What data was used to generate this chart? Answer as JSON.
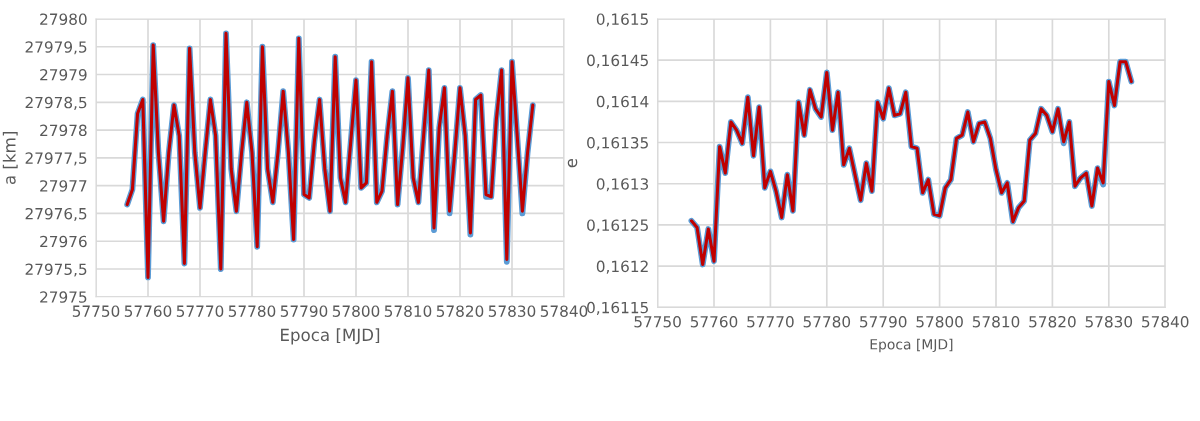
{
  "chart_data": [
    {
      "type": "line",
      "xlabel": "Epoca [MJD]",
      "ylabel": "a [km]",
      "x": [
        57756,
        57757,
        57758,
        57759,
        57760,
        57761,
        57762,
        57763,
        57764,
        57765,
        57766,
        57767,
        57768,
        57769,
        57770,
        57771,
        57772,
        57773,
        57774,
        57775,
        57776,
        57777,
        57778,
        57779,
        57780,
        57781,
        57782,
        57783,
        57784,
        57785,
        57786,
        57787,
        57788,
        57789,
        57790,
        57791,
        57792,
        57793,
        57794,
        57795,
        57796,
        57797,
        57798,
        57799,
        57800,
        57801,
        57802,
        57803,
        57804,
        57805,
        57806,
        57807,
        57808,
        57809,
        57810,
        57811,
        57812,
        57813,
        57814,
        57815,
        57816,
        57817,
        57818,
        57819,
        57820,
        57821,
        57822,
        57823,
        57824,
        57825,
        57826,
        57827,
        57828,
        57829,
        57830,
        57831,
        57832,
        57833,
        57834
      ],
      "series": [
        {
          "color": "#5b9bd5",
          "values": [
            27976.66,
            27976.93,
            27978.3,
            27978.55,
            27975.35,
            27979.53,
            27977.6,
            27976.36,
            27977.6,
            27978.45,
            27977.9,
            27975.6,
            27979.47,
            27977.6,
            27976.6,
            27977.6,
            27978.55,
            27977.9,
            27975.5,
            27979.74,
            27977.3,
            27976.54,
            27977.6,
            27978.5,
            27977.6,
            27975.9,
            27979.5,
            27977.3,
            27976.7,
            27977.6,
            27978.7,
            27977.6,
            27976.03,
            27979.65,
            27976.84,
            27976.78,
            27977.8,
            27978.55,
            27977.3,
            27976.54,
            27979.32,
            27977.14,
            27976.7,
            27977.8,
            27978.9,
            27976.96,
            27977.05,
            27979.23,
            27976.7,
            27976.9,
            27977.9,
            27978.7,
            27976.66,
            27977.7,
            27978.94,
            27977.14,
            27976.7,
            27977.9,
            27979.08,
            27976.2,
            27978.04,
            27978.76,
            27976.5,
            27977.6,
            27978.76,
            27977.9,
            27976.12,
            27978.55,
            27978.63,
            27976.8,
            27976.8,
            27978.2,
            27979.08,
            27975.63,
            27979.23,
            27977.9,
            27976.5,
            27977.6,
            27978.45
          ]
        },
        {
          "color": "#c00000",
          "values": [
            27976.66,
            27976.93,
            27978.3,
            27978.55,
            27975.35,
            27979.53,
            27977.6,
            27976.36,
            27977.6,
            27978.45,
            27977.9,
            27975.6,
            27979.47,
            27977.6,
            27976.6,
            27977.6,
            27978.55,
            27977.9,
            27975.5,
            27979.74,
            27977.3,
            27976.54,
            27977.6,
            27978.5,
            27977.6,
            27975.9,
            27979.5,
            27977.3,
            27976.7,
            27977.6,
            27978.7,
            27977.6,
            27976.03,
            27979.65,
            27976.84,
            27976.78,
            27977.8,
            27978.55,
            27977.3,
            27976.54,
            27979.32,
            27977.14,
            27976.7,
            27977.8,
            27978.9,
            27976.96,
            27977.05,
            27979.23,
            27976.7,
            27976.9,
            27977.9,
            27978.7,
            27976.66,
            27977.7,
            27978.94,
            27977.14,
            27976.7,
            27977.9,
            27979.08,
            27976.24,
            27978.04,
            27978.76,
            27976.54,
            27977.6,
            27978.76,
            27977.9,
            27976.15,
            27978.55,
            27978.63,
            27976.84,
            27976.8,
            27978.2,
            27979.08,
            27975.67,
            27979.23,
            27977.9,
            27976.54,
            27977.6,
            27978.45
          ]
        }
      ],
      "xlim": [
        57750,
        57840
      ],
      "xticks": [
        57750,
        57760,
        57770,
        57780,
        57790,
        57800,
        57810,
        57820,
        57830,
        57840
      ],
      "ylim": [
        27975,
        27980
      ],
      "yticks": [
        27975,
        {
          "value": 27975.5,
          "label": "27975,5"
        },
        27976,
        {
          "value": 27976.5,
          "label": "27976,5"
        },
        27977,
        {
          "value": 27977.5,
          "label": "27977,5"
        },
        27978,
        {
          "value": 27978.5,
          "label": "27978,5"
        },
        27979,
        {
          "value": 27979.5,
          "label": "27979,5"
        },
        27980
      ],
      "grid": true,
      "marker": "none",
      "line_style": "solid"
    },
    {
      "type": "line",
      "xlabel": "Epoca [MJD]",
      "ylabel": "e",
      "x": [
        57756,
        57757,
        57758,
        57759,
        57760,
        57761,
        57762,
        57763,
        57764,
        57765,
        57766,
        57767,
        57768,
        57769,
        57770,
        57771,
        57772,
        57773,
        57774,
        57775,
        57776,
        57777,
        57778,
        57779,
        57780,
        57781,
        57782,
        57783,
        57784,
        57785,
        57786,
        57787,
        57788,
        57789,
        57790,
        57791,
        57792,
        57793,
        57794,
        57795,
        57796,
        57797,
        57798,
        57799,
        57800,
        57801,
        57802,
        57803,
        57804,
        57805,
        57806,
        57807,
        57808,
        57809,
        57810,
        57811,
        57812,
        57813,
        57814,
        57815,
        57816,
        57817,
        57818,
        57819,
        57820,
        57821,
        57822,
        57823,
        57824,
        57825,
        57826,
        57827,
        57828,
        57829,
        57830,
        57831,
        57832,
        57833,
        57834
      ],
      "series": [
        {
          "color": "#5b9bd5",
          "values": [
            0.161255,
            0.161247,
            0.161202,
            0.161245,
            0.161206,
            0.161345,
            0.161313,
            0.161375,
            0.161365,
            0.161349,
            0.161405,
            0.161334,
            0.161393,
            0.161295,
            0.161315,
            0.161291,
            0.161259,
            0.161311,
            0.161267,
            0.161399,
            0.161359,
            0.161414,
            0.161391,
            0.161381,
            0.161435,
            0.161365,
            0.161411,
            0.161323,
            0.161343,
            0.161311,
            0.16128,
            0.161325,
            0.161291,
            0.161399,
            0.161379,
            0.161416,
            0.161383,
            0.161385,
            0.161411,
            0.161345,
            0.161343,
            0.161289,
            0.161305,
            0.161263,
            0.161261,
            0.161295,
            0.161305,
            0.161355,
            0.161359,
            0.161387,
            0.161351,
            0.161373,
            0.161375,
            0.161355,
            0.161317,
            0.161289,
            0.161301,
            0.161254,
            0.161271,
            0.161279,
            0.161353,
            0.161361,
            0.161391,
            0.161383,
            0.161363,
            0.161391,
            0.161349,
            0.161375,
            0.161297,
            0.161307,
            0.161313,
            0.161273,
            0.161319,
            0.161299,
            0.161424,
            0.161395,
            0.161448,
            0.161448,
            0.161424
          ]
        },
        {
          "color": "#c00000",
          "values": [
            0.161255,
            0.161247,
            0.161202,
            0.161245,
            0.161206,
            0.161345,
            0.161313,
            0.161375,
            0.161365,
            0.161349,
            0.161405,
            0.161334,
            0.161393,
            0.161295,
            0.161315,
            0.161291,
            0.161259,
            0.161311,
            0.161267,
            0.161399,
            0.161359,
            0.161414,
            0.161391,
            0.161381,
            0.161435,
            0.161365,
            0.161411,
            0.161323,
            0.161343,
            0.161311,
            0.16128,
            0.161325,
            0.161291,
            0.161399,
            0.161379,
            0.161416,
            0.161383,
            0.161385,
            0.161411,
            0.161345,
            0.161343,
            0.161289,
            0.161305,
            0.161263,
            0.161261,
            0.161295,
            0.161305,
            0.161355,
            0.161359,
            0.161387,
            0.161351,
            0.161373,
            0.161375,
            0.161355,
            0.161317,
            0.161289,
            0.161301,
            0.161254,
            0.161271,
            0.161279,
            0.161353,
            0.161361,
            0.161391,
            0.161383,
            0.161363,
            0.161391,
            0.161351,
            0.161375,
            0.161297,
            0.161307,
            0.161313,
            0.161273,
            0.161319,
            0.161301,
            0.161424,
            0.161395,
            0.161448,
            0.161448,
            0.161424
          ]
        }
      ],
      "xlim": [
        57750,
        57840
      ],
      "xticks": [
        57750,
        57760,
        57770,
        57780,
        57790,
        57800,
        57810,
        57820,
        57830,
        57840
      ],
      "ylim": [
        0.16115,
        0.1615
      ],
      "yticks": [
        {
          "value": 0.16115,
          "label": "0,16115"
        },
        {
          "value": 0.1612,
          "label": "0,1612"
        },
        {
          "value": 0.16125,
          "label": "0,16125"
        },
        {
          "value": 0.1613,
          "label": "0,1613"
        },
        {
          "value": 0.16135,
          "label": "0,16135"
        },
        {
          "value": 0.1614,
          "label": "0,1614"
        },
        {
          "value": 0.16145,
          "label": "0,16145"
        },
        {
          "value": 0.1615,
          "label": "0,1615"
        }
      ],
      "grid": true,
      "marker": "none",
      "line_style": "solid"
    }
  ]
}
